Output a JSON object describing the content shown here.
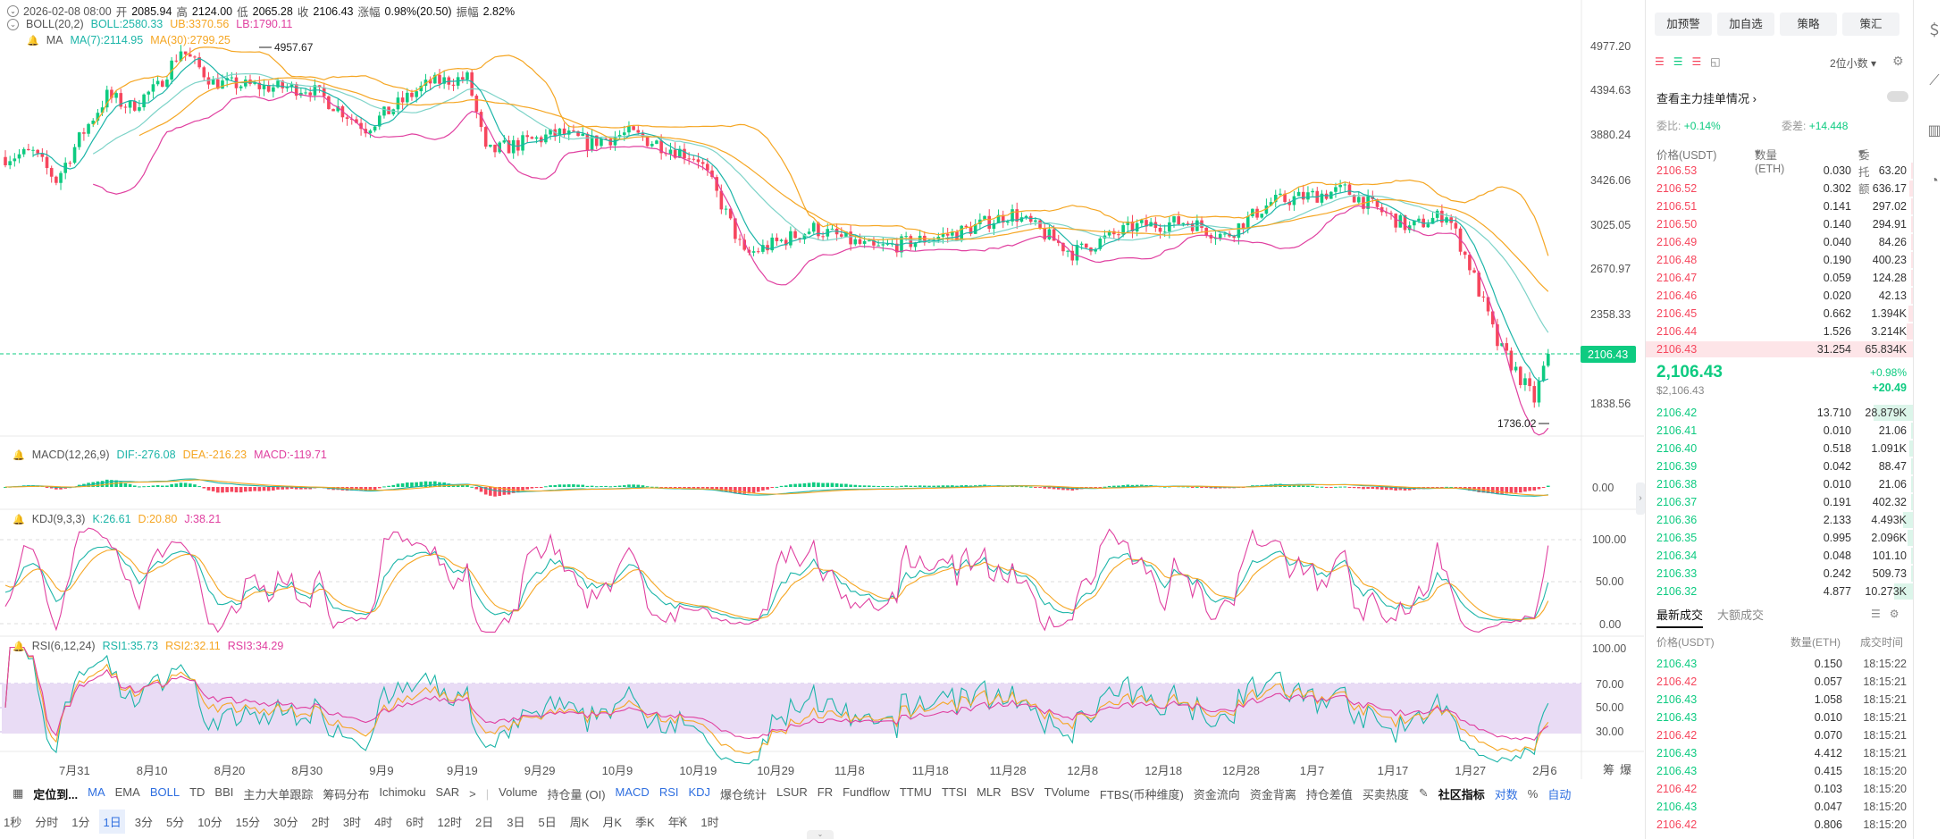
{
  "ohlc": {
    "date": "2026-02-08 08:00",
    "open_label": "开",
    "open": "2085.94",
    "high_label": "高",
    "high": "2124.00",
    "low_label": "低",
    "low": "2065.28",
    "close_label": "收",
    "close": "2106.43",
    "change_label": "涨幅",
    "change": "0.98%(20.50)",
    "amp_label": "振幅",
    "amp": "2.82%"
  },
  "boll": {
    "name": "BOLL(20,2)",
    "boll": "BOLL:2580.33",
    "ub": "UB:3370.56",
    "lb": "LB:1790.11"
  },
  "ma": {
    "name": "MA",
    "ma7": "MA(7):2114.95",
    "ma30": "MA(30):2799.25"
  },
  "macd": {
    "name": "MACD(12,26,9)",
    "dif": "DIF:-276.08",
    "dea": "DEA:-216.23",
    "macd": "MACD:-119.71"
  },
  "kdj": {
    "name": "KDJ(9,3,3)",
    "k": "K:26.61",
    "d": "D:20.80",
    "j": "J:38.21"
  },
  "rsi": {
    "name": "RSI(6,12,24)",
    "rsi1": "RSI1:35.73",
    "rsi2": "RSI2:32.11",
    "rsi3": "RSI3:34.29"
  },
  "price_axis": [
    "4977.20",
    "4394.63",
    "3880.24",
    "3426.06",
    "3025.05",
    "2670.97",
    "2358.33",
    "1838.56"
  ],
  "current_price_tag": "2106.43",
  "high_marker": "4957.67",
  "low_marker": "1736.02",
  "macd_axis": [
    "0.00"
  ],
  "kdj_axis": [
    "100.00",
    "50.00",
    "0.00"
  ],
  "rsi_axis": [
    "100.00",
    "70.00",
    "50.00",
    "30.00"
  ],
  "x_labels": [
    "7月31",
    "8月10",
    "8月20",
    "8月30",
    "9月9",
    "9月19",
    "9月29",
    "10月9",
    "10月19",
    "10月29",
    "11月8",
    "11月18",
    "11月28",
    "12月8",
    "12月18",
    "12月28",
    "1月7",
    "1月17",
    "1月27",
    "2月6"
  ],
  "axis_corner": [
    "筹",
    "爆"
  ],
  "indicator_bar": {
    "locate": "定位到...",
    "main": [
      "MA",
      "EMA",
      "BOLL",
      "TD",
      "BBI",
      "主力大单跟踪",
      "筹码分布",
      "Ichimoku",
      "SAR"
    ],
    "more": ">",
    "sub": [
      "Volume",
      "持仓量 (OI)",
      "MACD",
      "RSI",
      "KDJ",
      "爆仓统计",
      "LSUR",
      "FR",
      "Fundflow",
      "TTMU",
      "TTSI",
      "MLR",
      "BSV",
      "TVolume",
      "FTBS(币种维度)",
      "资金流向",
      "资金背离",
      "持仓差值",
      "买卖热度"
    ],
    "community": "社区指标",
    "pair": "对数",
    "percent": "%",
    "auto": "自动"
  },
  "timeframes": [
    "1秒",
    "分时",
    "1分",
    "1日",
    "3分",
    "5分",
    "10分",
    "15分",
    "30分",
    "2时",
    "3时",
    "4时",
    "6时",
    "12时",
    "2日",
    "3日",
    "5日",
    "周K",
    "月K",
    "季K",
    "年K",
    "1时"
  ],
  "active_timeframe": "1日",
  "panel": {
    "buttons": [
      "加预警",
      "加自选",
      "策略",
      "策汇"
    ],
    "precision": "2位小数",
    "main_orders": "查看主力挂单情况",
    "ratio_label": "委比:",
    "ratio": "+0.14%",
    "diff_label": "委差:",
    "diff": "+14.448",
    "col_price": "价格(USDT)",
    "col_qty": "数量 (ETH)",
    "col_total": "委托额",
    "asks": [
      {
        "p": "2106.53",
        "q": "0.030",
        "t": "63.20",
        "w": 0.02
      },
      {
        "p": "2106.52",
        "q": "0.302",
        "t": "636.17",
        "w": 0.05
      },
      {
        "p": "2106.51",
        "q": "0.141",
        "t": "297.02",
        "w": 0.03
      },
      {
        "p": "2106.50",
        "q": "0.140",
        "t": "294.91",
        "w": 0.03
      },
      {
        "p": "2106.49",
        "q": "0.040",
        "t": "84.26",
        "w": 0.02
      },
      {
        "p": "2106.48",
        "q": "0.190",
        "t": "400.23",
        "w": 0.03
      },
      {
        "p": "2106.47",
        "q": "0.059",
        "t": "124.28",
        "w": 0.02
      },
      {
        "p": "2106.46",
        "q": "0.020",
        "t": "42.13",
        "w": 0.02
      },
      {
        "p": "2106.45",
        "q": "0.662",
        "t": "1.394K",
        "w": 0.06
      },
      {
        "p": "2106.44",
        "q": "1.526",
        "t": "3.214K",
        "w": 0.08
      },
      {
        "p": "2106.43",
        "q": "31.254",
        "t": "65.834K",
        "w": 1.0
      }
    ],
    "mid_price": "2,106.43",
    "mid_usd": "$2,106.43",
    "mid_pct": "+0.98%",
    "mid_chg": "+20.49",
    "bids": [
      {
        "p": "2106.42",
        "q": "13.710",
        "t": "28.879K",
        "w": 0.45
      },
      {
        "p": "2106.41",
        "q": "0.010",
        "t": "21.06",
        "w": 0.01
      },
      {
        "p": "2106.40",
        "q": "0.518",
        "t": "1.091K",
        "w": 0.05
      },
      {
        "p": "2106.39",
        "q": "0.042",
        "t": "88.47",
        "w": 0.01
      },
      {
        "p": "2106.38",
        "q": "0.010",
        "t": "21.06",
        "w": 0.01
      },
      {
        "p": "2106.37",
        "q": "0.191",
        "t": "402.32",
        "w": 0.02
      },
      {
        "p": "2106.36",
        "q": "2.133",
        "t": "4.493K",
        "w": 0.12
      },
      {
        "p": "2106.35",
        "q": "0.995",
        "t": "2.096K",
        "w": 0.07
      },
      {
        "p": "2106.34",
        "q": "0.048",
        "t": "101.10",
        "w": 0.01
      },
      {
        "p": "2106.33",
        "q": "0.242",
        "t": "509.73",
        "w": 0.02
      },
      {
        "p": "2106.32",
        "q": "4.877",
        "t": "10.273K",
        "w": 0.22
      }
    ],
    "trades_tab1": "最新成交",
    "trades_tab2": "大额成交",
    "tr_col_price": "价格(USDT)",
    "tr_col_qty": "数量(ETH)",
    "tr_col_time": "成交时间",
    "trades": [
      {
        "p": "2106.43",
        "q": "0.150",
        "t": "18:15:22",
        "s": "g"
      },
      {
        "p": "2106.42",
        "q": "0.057",
        "t": "18:15:21",
        "s": "r"
      },
      {
        "p": "2106.43",
        "q": "1.058",
        "t": "18:15:21",
        "s": "g"
      },
      {
        "p": "2106.43",
        "q": "0.010",
        "t": "18:15:21",
        "s": "g"
      },
      {
        "p": "2106.42",
        "q": "0.070",
        "t": "18:15:21",
        "s": "r"
      },
      {
        "p": "2106.43",
        "q": "4.412",
        "t": "18:15:21",
        "s": "g"
      },
      {
        "p": "2106.43",
        "q": "0.415",
        "t": "18:15:20",
        "s": "g"
      },
      {
        "p": "2106.42",
        "q": "0.103",
        "t": "18:15:20",
        "s": "r"
      },
      {
        "p": "2106.43",
        "q": "0.047",
        "t": "18:15:20",
        "s": "g"
      },
      {
        "p": "2106.42",
        "q": "0.806",
        "t": "18:15:20",
        "s": "r"
      }
    ]
  },
  "sidebar_icons": [
    "dollar-icon",
    "line-chart-icon",
    "bar-chart-icon",
    "speed-icon"
  ],
  "colors": {
    "up": "#0ecb81",
    "down": "#f6465d",
    "ma7": "#1cb5a8",
    "ma30": "#f5a623",
    "boll": "#e040a0"
  },
  "chart_data": {
    "type": "candlestick",
    "price_scale": {
      "top": 4977.2,
      "bottom": 1838.56
    },
    "keyframes": [
      [
        0,
        3660
      ],
      [
        6,
        3700
      ],
      [
        11,
        3430
      ],
      [
        22,
        4330
      ],
      [
        27,
        4200
      ],
      [
        33,
        4440
      ],
      [
        38,
        4950
      ],
      [
        45,
        4500
      ],
      [
        56,
        4440
      ],
      [
        66,
        4420
      ],
      [
        78,
        3960
      ],
      [
        92,
        4500
      ],
      [
        100,
        4560
      ],
      [
        104,
        3700
      ],
      [
        120,
        3900
      ],
      [
        126,
        3800
      ],
      [
        135,
        3900
      ],
      [
        150,
        3650
      ],
      [
        160,
        2780
      ],
      [
        175,
        3000
      ],
      [
        188,
        2830
      ],
      [
        206,
        2960
      ],
      [
        218,
        3130
      ],
      [
        231,
        2800
      ],
      [
        244,
        3010
      ],
      [
        256,
        3060
      ],
      [
        264,
        2930
      ],
      [
        274,
        3230
      ],
      [
        290,
        3340
      ],
      [
        304,
        3000
      ],
      [
        312,
        3130
      ],
      [
        323,
        2170
      ],
      [
        331,
        1860
      ],
      [
        334,
        2106
      ]
    ]
  }
}
